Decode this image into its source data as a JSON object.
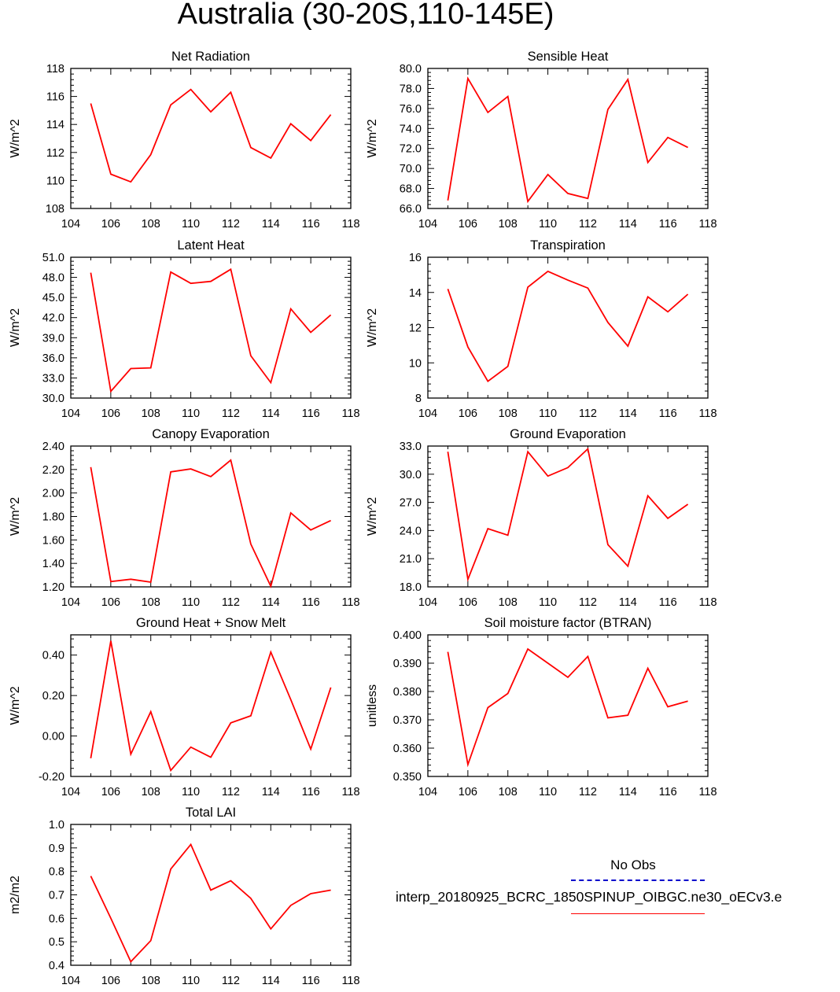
{
  "title": "Australia (30-20S,110-145E)",
  "colors": {
    "series": "#ff0000",
    "obs": "#0000cc",
    "axis": "#000000"
  },
  "legend": {
    "title": "No Obs",
    "model_label": "interp_20180925_BCRC_1850SPINUP_OIBGC.ne30_oECv3.e"
  },
  "chart_data": [
    {
      "type": "line",
      "title": "Net Radiation",
      "ylabel": "W/m^2",
      "xlabel": "",
      "xlim": [
        104,
        118
      ],
      "xticks": [
        "104",
        "106",
        "108",
        "110",
        "112",
        "114",
        "116",
        "118"
      ],
      "ylim": [
        108,
        118
      ],
      "yticks": [
        "108",
        "110",
        "112",
        "114",
        "116",
        "118"
      ],
      "x": [
        105,
        106,
        107,
        108,
        109,
        110,
        111,
        112,
        113,
        114,
        115,
        116,
        117
      ],
      "series": [
        {
          "values": [
            115.5,
            110.45,
            109.9,
            111.85,
            115.4,
            116.5,
            114.9,
            116.3,
            112.35,
            111.6,
            114.05,
            112.85,
            114.7
          ]
        }
      ]
    },
    {
      "type": "line",
      "title": "Sensible Heat",
      "ylabel": "W/m^2",
      "xlabel": "",
      "xlim": [
        104,
        118
      ],
      "xticks": [
        "104",
        "106",
        "108",
        "110",
        "112",
        "114",
        "116",
        "118"
      ],
      "ylim": [
        66,
        80
      ],
      "yticks": [
        "66.0",
        "68.0",
        "70.0",
        "72.0",
        "74.0",
        "76.0",
        "78.0",
        "80.0"
      ],
      "x": [
        105,
        106,
        107,
        108,
        109,
        110,
        111,
        112,
        113,
        114,
        115,
        116,
        117
      ],
      "series": [
        {
          "values": [
            66.8,
            79.0,
            75.6,
            77.2,
            66.7,
            69.4,
            67.5,
            67.0,
            75.9,
            78.9,
            70.6,
            73.1,
            72.1
          ]
        }
      ]
    },
    {
      "type": "line",
      "title": "Latent Heat",
      "ylabel": "W/m^2",
      "xlabel": "",
      "xlim": [
        104,
        118
      ],
      "xticks": [
        "104",
        "106",
        "108",
        "110",
        "112",
        "114",
        "116",
        "118"
      ],
      "ylim": [
        30,
        51
      ],
      "yticks": [
        "30.0",
        "33.0",
        "36.0",
        "39.0",
        "42.0",
        "45.0",
        "48.0",
        "51.0"
      ],
      "x": [
        105,
        106,
        107,
        108,
        109,
        110,
        111,
        112,
        113,
        114,
        115,
        116,
        117
      ],
      "series": [
        {
          "values": [
            48.7,
            31.0,
            34.4,
            34.5,
            48.8,
            47.1,
            47.4,
            49.2,
            36.3,
            32.3,
            43.3,
            39.8,
            42.4
          ]
        }
      ]
    },
    {
      "type": "line",
      "title": "Transpiration",
      "ylabel": "W/m^2",
      "xlabel": "",
      "xlim": [
        104,
        118
      ],
      "xticks": [
        "104",
        "106",
        "108",
        "110",
        "112",
        "114",
        "116",
        "118"
      ],
      "ylim": [
        8,
        16
      ],
      "yticks": [
        "8",
        "10",
        "12",
        "14",
        "16"
      ],
      "x": [
        105,
        106,
        107,
        108,
        109,
        110,
        111,
        112,
        113,
        114,
        115,
        116,
        117
      ],
      "series": [
        {
          "values": [
            14.2,
            10.9,
            8.95,
            9.8,
            14.3,
            15.2,
            14.7,
            14.25,
            12.3,
            10.95,
            13.75,
            12.9,
            13.9
          ]
        }
      ]
    },
    {
      "type": "line",
      "title": "Canopy Evaporation",
      "ylabel": "W/m^2",
      "xlabel": "",
      "xlim": [
        104,
        118
      ],
      "xticks": [
        "104",
        "106",
        "108",
        "110",
        "112",
        "114",
        "116",
        "118"
      ],
      "ylim": [
        1.2,
        2.4
      ],
      "yticks": [
        "1.20",
        "1.40",
        "1.60",
        "1.80",
        "2.00",
        "2.20",
        "2.40"
      ],
      "x": [
        105,
        106,
        107,
        108,
        109,
        110,
        111,
        112,
        113,
        114,
        115,
        116,
        117
      ],
      "series": [
        {
          "values": [
            2.22,
            1.245,
            1.265,
            1.24,
            2.18,
            2.205,
            2.14,
            2.28,
            1.565,
            1.205,
            1.83,
            1.685,
            1.765
          ]
        }
      ]
    },
    {
      "type": "line",
      "title": "Ground Evaporation",
      "ylabel": "W/m^2",
      "xlabel": "",
      "xlim": [
        104,
        118
      ],
      "xticks": [
        "104",
        "106",
        "108",
        "110",
        "112",
        "114",
        "116",
        "118"
      ],
      "ylim": [
        18,
        33
      ],
      "yticks": [
        "18.0",
        "21.0",
        "24.0",
        "27.0",
        "30.0",
        "33.0"
      ],
      "x": [
        105,
        106,
        107,
        108,
        109,
        110,
        111,
        112,
        113,
        114,
        115,
        116,
        117
      ],
      "series": [
        {
          "values": [
            32.4,
            18.8,
            24.2,
            23.5,
            32.4,
            29.8,
            30.7,
            32.7,
            22.5,
            20.2,
            27.7,
            25.3,
            26.8
          ]
        }
      ]
    },
    {
      "type": "line",
      "title": "Ground Heat + Snow Melt",
      "ylabel": "W/m^2",
      "xlabel": "",
      "xlim": [
        104,
        118
      ],
      "xticks": [
        "104",
        "106",
        "108",
        "110",
        "112",
        "114",
        "116",
        "118"
      ],
      "ylim": [
        -0.2,
        0.5
      ],
      "yticks": [
        "-0.20",
        "0.00",
        "0.20",
        "0.40"
      ],
      "x": [
        105,
        106,
        107,
        108,
        109,
        110,
        111,
        112,
        113,
        114,
        115,
        116,
        117
      ],
      "series": [
        {
          "values": [
            -0.11,
            0.47,
            -0.09,
            0.12,
            -0.17,
            -0.055,
            -0.105,
            0.065,
            0.1,
            0.415,
            0.18,
            -0.065,
            0.24
          ]
        }
      ]
    },
    {
      "type": "line",
      "title": "Soil moisture factor (BTRAN)",
      "ylabel": "unitless",
      "xlabel": "",
      "xlim": [
        104,
        118
      ],
      "xticks": [
        "104",
        "106",
        "108",
        "110",
        "112",
        "114",
        "116",
        "118"
      ],
      "ylim": [
        0.35,
        0.4
      ],
      "yticks": [
        "0.350",
        "0.360",
        "0.370",
        "0.380",
        "0.390",
        "0.400"
      ],
      "x": [
        105,
        106,
        107,
        108,
        109,
        110,
        111,
        112,
        113,
        114,
        115,
        116,
        117
      ],
      "series": [
        {
          "values": [
            0.394,
            0.3542,
            0.3743,
            0.3793,
            0.395,
            0.39,
            0.385,
            0.3924,
            0.3707,
            0.3716,
            0.3882,
            0.3746,
            0.3766
          ]
        }
      ]
    },
    {
      "type": "line",
      "title": "Total LAI",
      "ylabel": "m2/m2",
      "xlabel": "",
      "xlim": [
        104,
        118
      ],
      "xticks": [
        "104",
        "106",
        "108",
        "110",
        "112",
        "114",
        "116",
        "118"
      ],
      "ylim": [
        0.4,
        1.0
      ],
      "yticks": [
        "0.4",
        "0.5",
        "0.6",
        "0.7",
        "0.8",
        "0.9",
        "1.0"
      ],
      "x": [
        105,
        106,
        107,
        108,
        109,
        110,
        111,
        112,
        113,
        114,
        115,
        116,
        117
      ],
      "series": [
        {
          "values": [
            0.78,
            0.6,
            0.415,
            0.505,
            0.81,
            0.915,
            0.72,
            0.76,
            0.685,
            0.555,
            0.655,
            0.705,
            0.72
          ]
        }
      ]
    }
  ]
}
